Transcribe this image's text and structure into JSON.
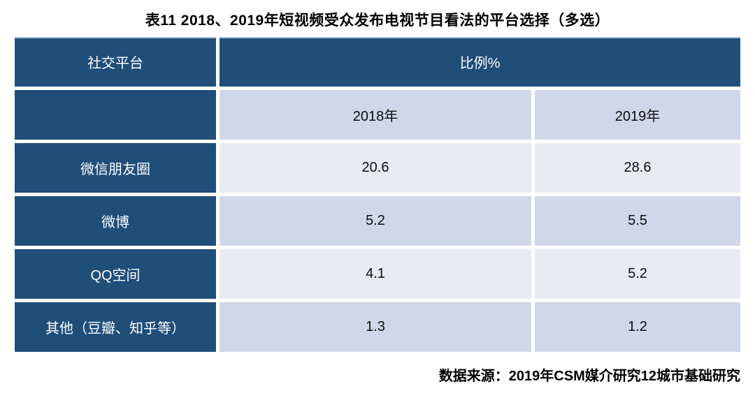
{
  "title": "表11 2018、2019年短视频受众发布电视节目看法的平台选择（多选）",
  "source": "数据来源：2019年CSM媒介研究12城市基础研究",
  "colors": {
    "header_bg": "#1f4e79",
    "band_medium": "#d1d6e9",
    "band_light": "#e8eaf4",
    "header_text": "#ffffff",
    "body_text": "#0d0d0d",
    "page_bg": "#ffffff"
  },
  "table": {
    "col1_header": "社交平台",
    "col2_header": "比例%",
    "year_headers": [
      "2018年",
      "2019年"
    ],
    "rows": [
      {
        "label": "微信朋友圈",
        "values": [
          "20.6",
          "28.6"
        ]
      },
      {
        "label": "微博",
        "values": [
          "5.2",
          "5.5"
        ]
      },
      {
        "label": "QQ空间",
        "values": [
          "4.1",
          "5.2"
        ]
      },
      {
        "label": "其他（豆瓣、知乎等）",
        "values": [
          "1.3",
          "1.2"
        ]
      }
    ]
  },
  "chart_data": {
    "type": "table",
    "title": "表11 2018、2019年短视频受众发布电视节目看法的平台选择（多选）",
    "unit": "比例%",
    "categories": [
      "微信朋友圈",
      "微博",
      "QQ空间",
      "其他（豆瓣、知乎等）"
    ],
    "series": [
      {
        "name": "2018年",
        "values": [
          20.6,
          5.2,
          4.1,
          1.3
        ]
      },
      {
        "name": "2019年",
        "values": [
          28.6,
          5.5,
          5.2,
          1.2
        ]
      }
    ],
    "source": "数据来源：2019年CSM媒介研究12城市基础研究"
  }
}
